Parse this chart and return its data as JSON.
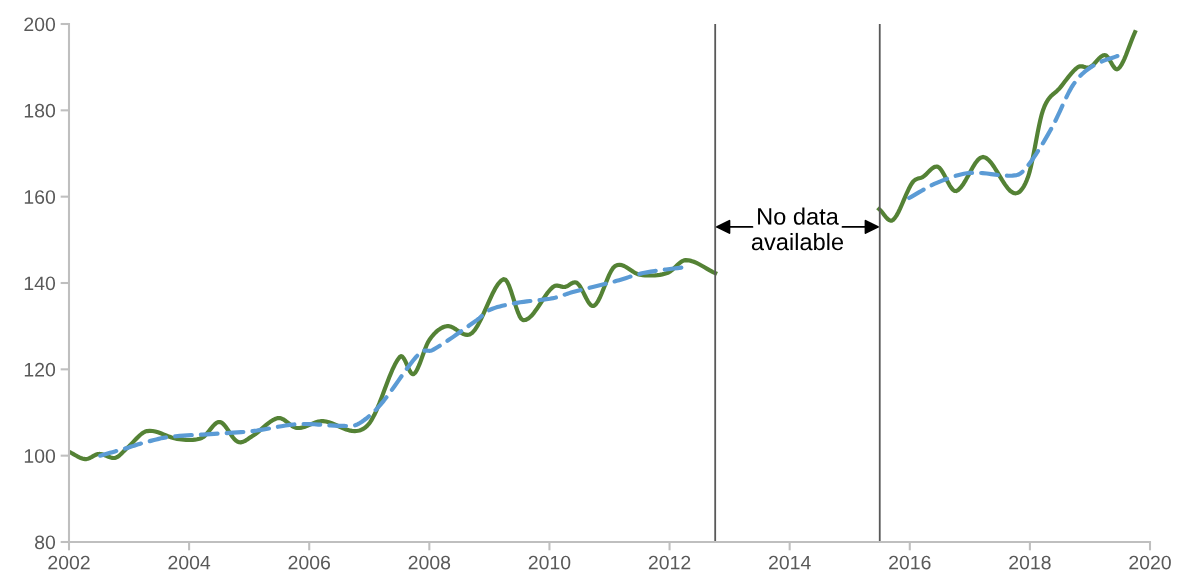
{
  "chart_data": {
    "type": "line",
    "xlim": [
      2002,
      2020
    ],
    "xticks": [
      2002,
      2004,
      2006,
      2008,
      2010,
      2012,
      2014,
      2016,
      2018,
      2020
    ],
    "ylim": [
      80,
      200
    ],
    "yticks": [
      80,
      100,
      120,
      140,
      160,
      180,
      200
    ],
    "grid": false,
    "legend": false,
    "marker": "none",
    "series": [
      {
        "color": "#548235",
        "line_style": "solid",
        "x": [
          2002.0,
          2002.27,
          2002.5,
          2002.77,
          2002.97,
          2003.3,
          2003.8,
          2004.21,
          2004.51,
          2004.81,
          2005.06,
          2005.48,
          2005.8,
          2006.23,
          2006.76,
          2007.04,
          2007.51,
          2007.74,
          2008.0,
          2008.29,
          2008.71,
          2009.24,
          2009.56,
          2010.06,
          2010.26,
          2010.46,
          2010.74,
          2011.09,
          2011.51,
          2011.96,
          2012.27,
          2012.76,
          2014.0,
          2015.49,
          2015.72,
          2016.04,
          2016.22,
          2016.47,
          2016.77,
          2017.22,
          2017.72,
          2017.97,
          2018.22,
          2018.5,
          2018.8,
          2019.0,
          2019.25,
          2019.47,
          2019.75
        ],
        "values": [
          100.9,
          99.2,
          100.4,
          99.5,
          101.8,
          105.7,
          103.9,
          104.1,
          107.8,
          103.2,
          104.6,
          108.7,
          106.4,
          108.0,
          105.7,
          108.3,
          122.9,
          118.9,
          126.8,
          130.0,
          128.4,
          140.9,
          131.4,
          139.1,
          139.1,
          140.0,
          134.7,
          143.9,
          141.9,
          142.3,
          145.3,
          142.3,
          null,
          157.1,
          154.6,
          163.2,
          164.6,
          166.9,
          161.3,
          169.2,
          160.9,
          164.6,
          180.1,
          185.2,
          190.0,
          190.0,
          192.8,
          189.6,
          198.1
        ]
      },
      {
        "color": "#5b9bd5",
        "line_style": "dashed",
        "x": [
          2002.52,
          2002.97,
          2003.22,
          2003.65,
          2004.35,
          2005.06,
          2005.81,
          2006.56,
          2006.81,
          2007.18,
          2007.84,
          2008.06,
          2008.79,
          2009.01,
          2009.46,
          2010.06,
          2010.39,
          2011.12,
          2011.56,
          2012.26,
          2014.0,
          2015.99,
          2016.45,
          2017.0,
          2017.78,
          2018.0,
          2018.37,
          2018.72,
          2019.05,
          2019.5
        ],
        "values": [
          100.0,
          101.8,
          102.9,
          104.3,
          105.0,
          105.7,
          107.3,
          106.9,
          107.3,
          111.7,
          123.8,
          124.5,
          131.4,
          133.8,
          135.4,
          136.5,
          137.9,
          140.5,
          142.3,
          143.7,
          null,
          159.7,
          163.2,
          165.5,
          165.0,
          167.8,
          176.1,
          185.9,
          190.3,
          192.8
        ]
      }
    ],
    "ref_lines": [
      {
        "axis": "x",
        "value": 2012.76,
        "color": "#595959"
      },
      {
        "axis": "x",
        "value": 2015.5,
        "color": "#595959"
      }
    ],
    "annotations": [
      {
        "text": "No data\navailable",
        "x": 2012.76,
        "y": 153
      }
    ]
  }
}
